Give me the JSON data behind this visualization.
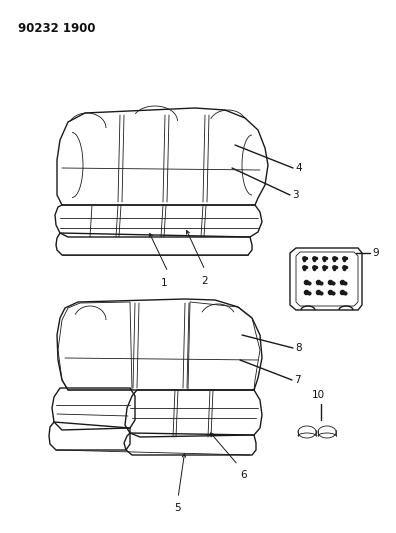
{
  "title": "90232 1900",
  "background_color": "#ffffff",
  "line_color": "#1a1a1a",
  "label_color": "#111111",
  "title_fontsize": 8.5,
  "label_fontsize": 7.5
}
